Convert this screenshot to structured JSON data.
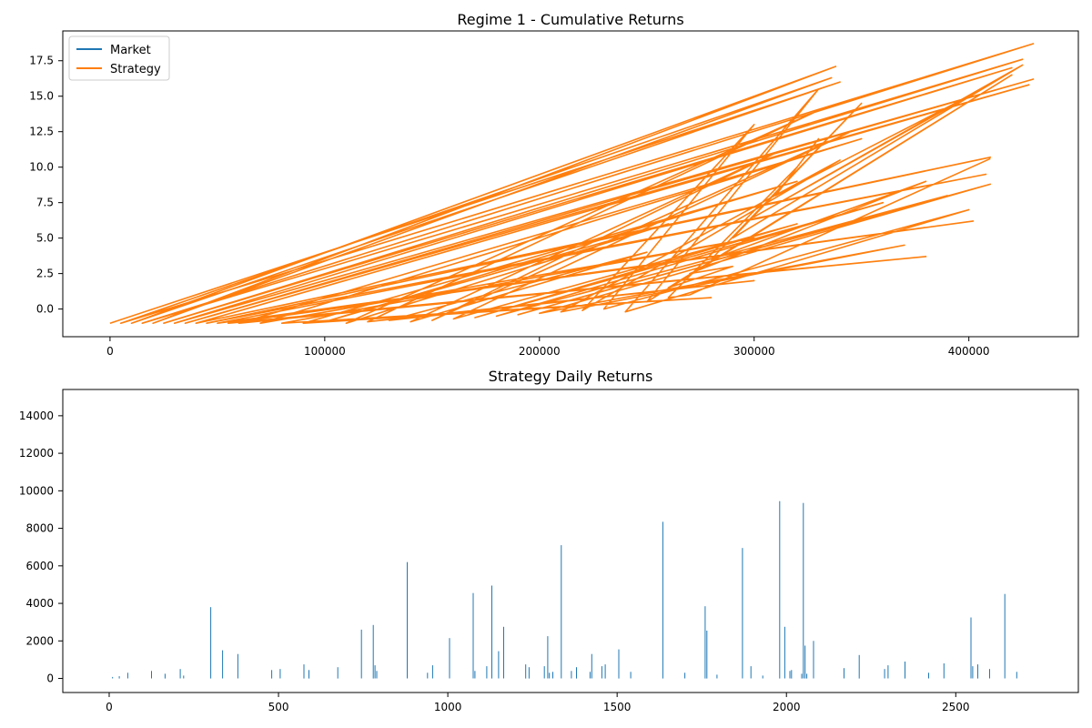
{
  "chart_data": [
    {
      "type": "line",
      "title": "Regime 1 - Cumulative Returns",
      "xlabel": "",
      "ylabel": "",
      "xlim": [
        -22000,
        451000
      ],
      "ylim": [
        -1.95,
        19.6
      ],
      "xticks": [
        0,
        100000,
        200000,
        300000,
        400000
      ],
      "xtick_labels": [
        "0",
        "100000",
        "200000",
        "300000",
        "400000"
      ],
      "yticks": [
        0.0,
        2.5,
        5.0,
        7.5,
        10.0,
        12.5,
        15.0,
        17.5
      ],
      "ytick_labels": [
        "0.0",
        "2.5",
        "5.0",
        "7.5",
        "10.0",
        "12.5",
        "15.0",
        "17.5"
      ],
      "grid": false,
      "legend_position": "upper-left",
      "series": [
        {
          "name": "Market",
          "color": "#1f77b4",
          "points": []
        },
        {
          "name": "Strategy",
          "color": "#ff7f0e",
          "points": [
            [
              0,
              -1.0
            ],
            [
              340000,
              16.0
            ],
            [
              10000,
              -1.0
            ],
            [
              338000,
              17.1
            ],
            [
              20000,
              -1.0
            ],
            [
              336000,
              16.3
            ],
            [
              5000,
              -1.0
            ],
            [
              430000,
              18.7
            ],
            [
              15000,
              -1.0
            ],
            [
              425000,
              17.6
            ],
            [
              25000,
              -1.0
            ],
            [
              420000,
              17.0
            ],
            [
              30000,
              -1.0
            ],
            [
              430000,
              16.2
            ],
            [
              35000,
              -1.0
            ],
            [
              428000,
              15.8
            ],
            [
              40000,
              -1.0
            ],
            [
              410000,
              10.7
            ],
            [
              45000,
              -1.0
            ],
            [
              408000,
              9.5
            ],
            [
              50000,
              -1.0
            ],
            [
              402000,
              6.2
            ],
            [
              55000,
              -1.0
            ],
            [
              380000,
              3.7
            ],
            [
              60000,
              -1.0
            ],
            [
              350000,
              12.0
            ],
            [
              70000,
              -1.0
            ],
            [
              300000,
              5.0
            ],
            [
              80000,
              -1.0
            ],
            [
              280000,
              0.8
            ],
            [
              90000,
              -1.0
            ],
            [
              320000,
              9.0
            ],
            [
              100000,
              -0.9
            ],
            [
              260000,
              6.0
            ],
            [
              110000,
              -1.0
            ],
            [
              330000,
              14.0
            ],
            [
              120000,
              -0.9
            ],
            [
              300000,
              2.0
            ],
            [
              130000,
              -0.8
            ],
            [
              250000,
              4.0
            ],
            [
              140000,
              -0.9
            ],
            [
              310000,
              11.0
            ],
            [
              150000,
              -0.8
            ],
            [
              345000,
              12.5
            ],
            [
              160000,
              -0.7
            ],
            [
              320000,
              6.0
            ],
            [
              170000,
              -0.6
            ],
            [
              360000,
              7.5
            ],
            [
              180000,
              -0.5
            ],
            [
              390000,
              8.0
            ],
            [
              190000,
              -0.4
            ],
            [
              410000,
              8.8
            ],
            [
              200000,
              -0.3
            ],
            [
              370000,
              4.5
            ],
            [
              210000,
              -0.2
            ],
            [
              340000,
              10.5
            ],
            [
              220000,
              -0.1
            ],
            [
              300000,
              13.0
            ],
            [
              230000,
              0.0
            ],
            [
              400000,
              7.0
            ],
            [
              240000,
              -0.2
            ],
            [
              330000,
              15.5
            ],
            [
              250000,
              0.5
            ],
            [
              420000,
              16.5
            ],
            [
              260000,
              1.5
            ],
            [
              290000,
              3.0
            ],
            [
              270000,
              2.5
            ],
            [
              380000,
              9.0
            ],
            [
              280000,
              3.5
            ],
            [
              350000,
              14.5
            ],
            [
              290000,
              5.0
            ],
            [
              425000,
              17.2
            ],
            [
              300000,
              6.5
            ],
            [
              400000,
              15.0
            ],
            [
              310000,
              8.0
            ],
            [
              330000,
              12.0
            ],
            [
              320000,
              10.0
            ],
            [
              260000,
              0.8
            ],
            [
              270000,
              1.0
            ],
            [
              410000,
              10.6
            ]
          ]
        }
      ]
    },
    {
      "type": "bar",
      "title": "Strategy Daily Returns",
      "xlabel": "",
      "ylabel": "",
      "xlim": [
        -137,
        2862
      ],
      "ylim": [
        -750,
        15400
      ],
      "xticks": [
        0,
        500,
        1000,
        1500,
        2000,
        2500
      ],
      "xtick_labels": [
        "0",
        "500",
        "1000",
        "1500",
        "2000",
        "2500"
      ],
      "yticks": [
        0,
        2000,
        4000,
        6000,
        8000,
        10000,
        12000,
        14000
      ],
      "ytick_labels": [
        "0",
        "2000",
        "4000",
        "6000",
        "8000",
        "10000",
        "12000",
        "14000"
      ],
      "grid": false,
      "color": "#1f77b4",
      "x": [
        10,
        30,
        55,
        125,
        165,
        210,
        220,
        300,
        335,
        380,
        480,
        505,
        575,
        590,
        675,
        745,
        780,
        785,
        790,
        880,
        940,
        955,
        1005,
        1075,
        1080,
        1115,
        1130,
        1150,
        1165,
        1230,
        1240,
        1285,
        1295,
        1300,
        1310,
        1335,
        1365,
        1380,
        1420,
        1425,
        1455,
        1465,
        1505,
        1540,
        1635,
        1700,
        1760,
        1765,
        1795,
        1870,
        1895,
        1930,
        1980,
        1995,
        2010,
        2015,
        2045,
        2050,
        2055,
        2060,
        2080,
        2170,
        2215,
        2290,
        2300,
        2350,
        2420,
        2465,
        2545,
        2550,
        2565,
        2600,
        2645,
        2680
      ],
      "values": [
        80,
        120,
        300,
        400,
        250,
        500,
        150,
        3800,
        1500,
        1300,
        450,
        500,
        750,
        450,
        600,
        2600,
        2850,
        700,
        400,
        6200,
        300,
        700,
        2150,
        4550,
        400,
        650,
        4950,
        1450,
        2750,
        750,
        600,
        650,
        2250,
        300,
        350,
        7100,
        400,
        600,
        350,
        1300,
        650,
        750,
        1550,
        350,
        8350,
        300,
        3850,
        2550,
        200,
        6950,
        650,
        150,
        9450,
        2750,
        400,
        450,
        250,
        9350,
        1750,
        250,
        2000,
        550,
        1250,
        500,
        700,
        900,
        300,
        800,
        3250,
        650,
        750,
        500,
        4500,
        350
      ]
    }
  ],
  "legend": {
    "market_label": "Market",
    "strategy_label": "Strategy"
  }
}
